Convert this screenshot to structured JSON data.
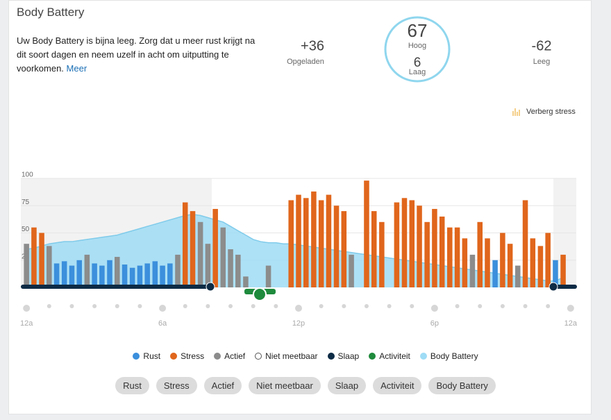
{
  "header": {
    "title": "Body Battery",
    "message": "Uw Body Battery is bijna leeg. Zorg dat u meer rust krijgt na dit soort dagen en neem uzelf in acht om uitputting te voorkomen.",
    "link": "Meer"
  },
  "summary": {
    "charged": "+36",
    "charged_label": "Opgeladen",
    "high": "67",
    "high_label": "Hoog",
    "low": "6",
    "low_label": "Laag",
    "drained": "-62",
    "drained_label": "Leeg"
  },
  "toggle": "Verberg stress",
  "chart_data": {
    "type": "bar",
    "x": [
      0,
      0.33,
      0.67,
      1,
      1.33,
      1.67,
      2,
      2.33,
      2.67,
      3,
      3.33,
      3.67,
      4,
      4.33,
      4.67,
      5,
      5.33,
      5.67,
      6,
      6.33,
      6.67,
      7,
      7.33,
      7.67,
      8,
      8.33,
      8.67,
      9,
      9.33,
      9.67,
      10,
      10.33,
      10.67,
      11,
      11.33,
      11.67,
      12,
      12.33,
      12.67,
      13,
      13.33,
      13.67,
      14,
      14.33,
      14.67,
      15,
      15.33,
      15.67,
      16,
      16.33,
      16.67,
      17,
      17.33,
      17.67,
      18,
      18.33,
      18.67,
      19,
      19.33,
      19.67,
      20,
      20.33,
      20.67,
      21,
      21.33,
      21.67,
      22,
      22.33,
      22.67,
      23,
      23.33,
      23.67
    ],
    "xlim": [
      -0.25,
      24.25
    ],
    "xticks": [
      {
        "value": 0,
        "label": "12a"
      },
      {
        "value": 6,
        "label": "6a"
      },
      {
        "value": 12,
        "label": "12p"
      },
      {
        "value": 18,
        "label": "6p"
      },
      {
        "value": 24,
        "label": "12a"
      }
    ],
    "ylim": [
      0,
      100
    ],
    "yticks": [
      25,
      50,
      75,
      100
    ],
    "grid": true,
    "series": [
      {
        "name": "Rust",
        "color": "#3b8fdc",
        "type": "bar",
        "values": [
          null,
          null,
          null,
          null,
          22,
          24,
          20,
          25,
          null,
          22,
          20,
          25,
          null,
          21,
          18,
          20,
          22,
          24,
          20,
          22,
          null,
          null,
          null,
          null,
          null,
          null,
          null,
          null,
          null,
          null,
          null,
          null,
          null,
          null,
          null,
          null,
          null,
          null,
          null,
          null,
          null,
          null,
          null,
          null,
          null,
          null,
          null,
          null,
          null,
          null,
          null,
          null,
          null,
          null,
          null,
          null,
          null,
          null,
          null,
          null,
          null,
          null,
          25,
          null,
          null,
          null,
          null,
          null,
          null,
          null,
          25,
          null
        ]
      },
      {
        "name": "Stress",
        "color": "#e0661c",
        "type": "bar",
        "values": [
          null,
          55,
          50,
          null,
          null,
          null,
          null,
          null,
          null,
          null,
          null,
          null,
          null,
          null,
          null,
          null,
          null,
          null,
          null,
          null,
          null,
          78,
          70,
          null,
          null,
          72,
          null,
          null,
          null,
          null,
          null,
          null,
          null,
          null,
          null,
          80,
          85,
          82,
          88,
          80,
          85,
          75,
          70,
          null,
          null,
          98,
          70,
          60,
          null,
          78,
          82,
          80,
          75,
          60,
          72,
          65,
          55,
          55,
          45,
          null,
          60,
          45,
          null,
          50,
          40,
          null,
          80,
          45,
          38,
          50,
          null,
          30
        ]
      },
      {
        "name": "Actief",
        "color": "#8c8c8c",
        "type": "bar",
        "values": [
          40,
          null,
          null,
          38,
          null,
          null,
          null,
          null,
          30,
          null,
          null,
          null,
          28,
          null,
          null,
          null,
          null,
          null,
          null,
          null,
          30,
          null,
          null,
          60,
          40,
          null,
          55,
          35,
          30,
          10,
          null,
          null,
          20,
          null,
          null,
          null,
          null,
          null,
          null,
          null,
          null,
          null,
          null,
          30,
          null,
          null,
          null,
          null,
          null,
          null,
          null,
          null,
          null,
          null,
          null,
          null,
          null,
          null,
          null,
          30,
          null,
          null,
          null,
          null,
          null,
          20,
          null,
          null,
          null,
          null,
          null,
          null
        ]
      },
      {
        "name": "Niet meetbaar",
        "color": "#ffffff"
      },
      {
        "name": "Slaap",
        "color": "#0d2b45"
      },
      {
        "name": "Activiteit",
        "color": "#1e8a3c"
      },
      {
        "name": "Body Battery",
        "color": "#9fdcf5",
        "type": "area",
        "values": [
          35,
          36,
          38,
          40,
          41,
          42,
          42,
          43,
          44,
          45,
          46,
          47,
          48,
          50,
          52,
          54,
          56,
          58,
          60,
          62,
          64,
          66,
          67,
          66,
          64,
          62,
          60,
          56,
          52,
          48,
          44,
          42,
          41,
          41,
          40,
          40,
          39,
          38,
          37,
          36,
          35,
          34,
          33,
          32,
          31,
          30,
          29,
          28,
          27,
          26,
          25,
          24,
          23,
          22,
          21,
          20,
          19,
          18,
          17,
          16,
          15,
          14,
          13,
          12,
          11,
          10,
          9,
          8,
          7,
          6,
          6,
          9
        ]
      }
    ]
  },
  "filters": [
    "Rust",
    "Stress",
    "Actief",
    "Niet meetbaar",
    "Slaap",
    "Activiteit",
    "Body Battery"
  ]
}
